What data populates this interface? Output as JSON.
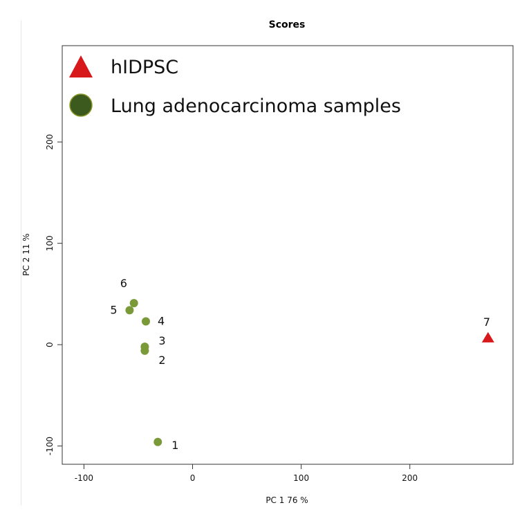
{
  "chart_data": {
    "type": "scatter",
    "title": "Scores",
    "xlabel": "PC 1 76 %",
    "ylabel": "PC 2 11 %",
    "xlim": [
      -120,
      295
    ],
    "ylim": [
      -118,
      295
    ],
    "xticks": [
      -100,
      0,
      100,
      200
    ],
    "yticks": [
      -100,
      0,
      100,
      200
    ],
    "grid": false,
    "legend_position": "top-left",
    "legend": [
      {
        "label": "hIDPSC",
        "marker": "triangle",
        "color": "#d7191c"
      },
      {
        "label": "Lung adenocarcinoma samples",
        "marker": "circle",
        "color": "#3d5a1e"
      }
    ],
    "series": [
      {
        "name": "Lung adenocarcinoma samples",
        "marker": "circle",
        "color": "#7a9a3a",
        "points": [
          {
            "label": "1",
            "x": -32,
            "y": -96
          },
          {
            "label": "2",
            "x": -44,
            "y": -6
          },
          {
            "label": "3",
            "x": -44,
            "y": -2
          },
          {
            "label": "4",
            "x": -43,
            "y": 23
          },
          {
            "label": "5",
            "x": -58,
            "y": 34
          },
          {
            "label": "6",
            "x": -54,
            "y": 41
          }
        ]
      },
      {
        "name": "hIDPSC",
        "marker": "triangle",
        "color": "#d7191c",
        "points": [
          {
            "label": "7",
            "x": 272,
            "y": 7
          }
        ]
      }
    ]
  }
}
